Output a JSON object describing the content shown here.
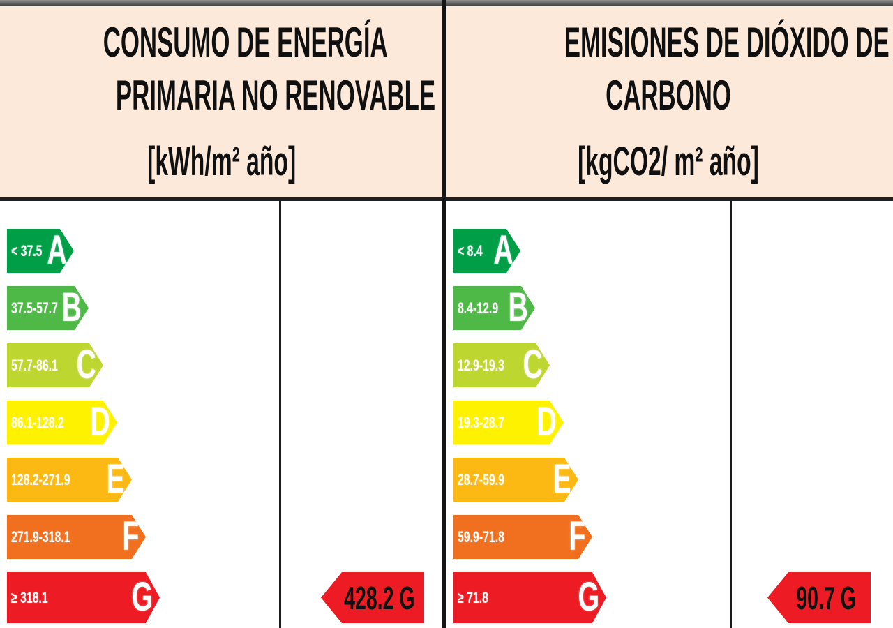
{
  "colors": {
    "header_background": "#fce9da",
    "divider": "#1a1a1a",
    "result_arrow": "#ed1c24",
    "rating_a": "#009e47",
    "rating_b": "#4fb948",
    "rating_c": "#bed630",
    "rating_d": "#fff200",
    "rating_e": "#fdb913",
    "rating_f": "#f1701f",
    "rating_g": "#ed1c24"
  },
  "panels": [
    {
      "title_line1": "CONSUMO DE ENERGÍA",
      "title_line2": "PRIMARIA NO RENOVABLE",
      "unit": "[kWh/m² año]",
      "scale": [
        {
          "letter": "A",
          "range": "< 37.5",
          "color": "#009e47"
        },
        {
          "letter": "B",
          "range": "37.5-57.7",
          "color": "#4fb948"
        },
        {
          "letter": "C",
          "range": "57.7-86.1",
          "color": "#bed630"
        },
        {
          "letter": "D",
          "range": "86.1-128.2",
          "color": "#fff200"
        },
        {
          "letter": "E",
          "range": "128.2-271.9",
          "color": "#fdb913"
        },
        {
          "letter": "F",
          "range": "271.9-318.1",
          "color": "#f1701f"
        },
        {
          "letter": "G",
          "range": "≥ 318.1",
          "color": "#ed1c24"
        }
      ],
      "result": {
        "display": "428.2 G",
        "value": "428.2",
        "letter": "G",
        "color": "#ed1c24"
      }
    },
    {
      "title_line1": "EMISIONES DE DIÓXIDO DE",
      "title_line2": "CARBONO",
      "unit": "[kgCO2/ m² año]",
      "scale": [
        {
          "letter": "A",
          "range": "< 8.4",
          "color": "#009e47"
        },
        {
          "letter": "B",
          "range": "8.4-12.9",
          "color": "#4fb948"
        },
        {
          "letter": "C",
          "range": "12.9-19.3",
          "color": "#bed630"
        },
        {
          "letter": "D",
          "range": "19.3-28.7",
          "color": "#fff200"
        },
        {
          "letter": "E",
          "range": "28.7-59.9",
          "color": "#fdb913"
        },
        {
          "letter": "F",
          "range": "59.9-71.8",
          "color": "#f1701f"
        },
        {
          "letter": "G",
          "range": "≥ 71.8",
          "color": "#ed1c24"
        }
      ],
      "result": {
        "display": "90.7 G",
        "value": "90.7",
        "letter": "G",
        "color": "#ed1c24"
      }
    }
  ],
  "chart_data": [
    {
      "type": "bar",
      "title": "CONSUMO DE ENERGÍA PRIMARIA NO RENOVABLE",
      "unit": "kWh/m² año",
      "categories": [
        "A",
        "B",
        "C",
        "D",
        "E",
        "F",
        "G"
      ],
      "ranges": [
        "< 37.5",
        "37.5-57.7",
        "57.7-86.1",
        "86.1-128.2",
        "128.2-271.9",
        "271.9-318.1",
        "≥ 318.1"
      ],
      "thresholds": [
        37.5,
        57.7,
        86.1,
        128.2,
        271.9,
        318.1
      ],
      "bar_colors": [
        "#009e47",
        "#4fb948",
        "#bed630",
        "#fff200",
        "#fdb913",
        "#f1701f",
        "#ed1c24"
      ],
      "rated_value": 428.2,
      "rated_letter": "G",
      "legend_position": "none",
      "grid": false
    },
    {
      "type": "bar",
      "title": "EMISIONES DE DIÓXIDO DE CARBONO",
      "unit": "kgCO2/ m² año",
      "categories": [
        "A",
        "B",
        "C",
        "D",
        "E",
        "F",
        "G"
      ],
      "ranges": [
        "< 8.4",
        "8.4-12.9",
        "12.9-19.3",
        "19.3-28.7",
        "28.7-59.9",
        "59.9-71.8",
        "≥ 71.8"
      ],
      "thresholds": [
        8.4,
        12.9,
        19.3,
        28.7,
        59.9,
        71.8
      ],
      "bar_colors": [
        "#009e47",
        "#4fb948",
        "#bed630",
        "#fff200",
        "#fdb913",
        "#f1701f",
        "#ed1c24"
      ],
      "rated_value": 90.7,
      "rated_letter": "G",
      "legend_position": "none",
      "grid": false
    }
  ]
}
